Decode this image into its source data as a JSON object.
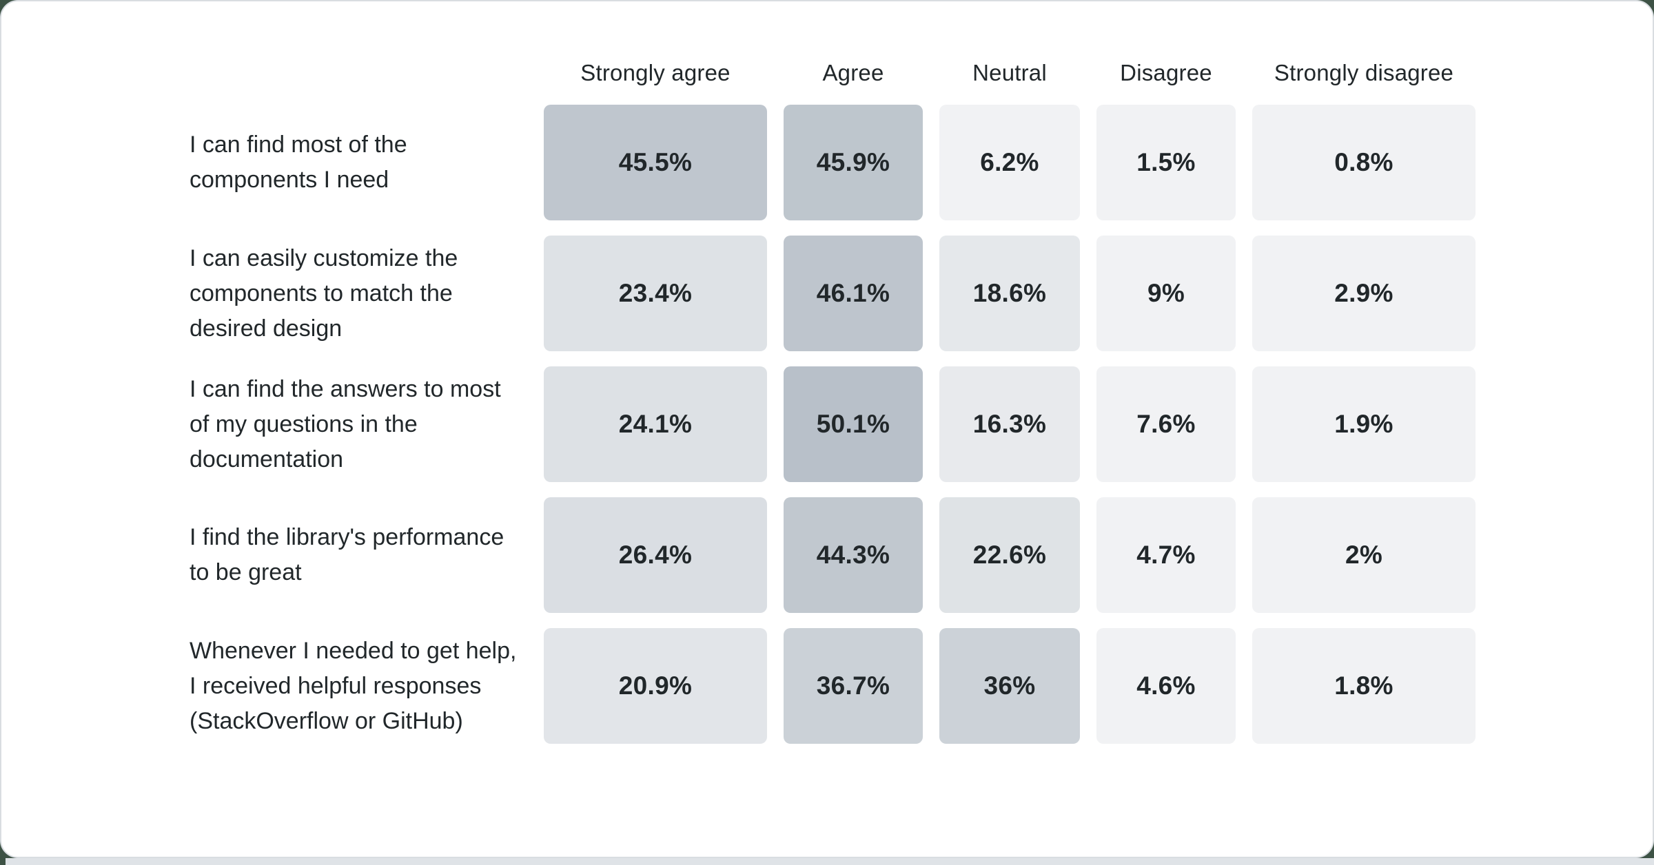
{
  "page": {
    "background_color": "#3d5245",
    "card_background": "#ffffff",
    "card_border_color": "#d9dde1",
    "bottom_strip_color": "#dfe3e7"
  },
  "theme": {
    "text_color": "#21272a",
    "cell_base_rgb": [
      114,
      130,
      147
    ],
    "cell_min_alpha": 0.1
  },
  "survey": {
    "columns": [
      "Strongly agree",
      "Agree",
      "Neutral",
      "Disagree",
      "Strongly disagree"
    ],
    "rows": [
      {
        "label": "I can find most of the components I need",
        "values": [
          45.5,
          45.9,
          6.2,
          1.5,
          0.8
        ],
        "display": [
          "45.5%",
          "45.9%",
          "6.2%",
          "1.5%",
          "0.8%"
        ]
      },
      {
        "label": "I can easily customize the components to match the desired design",
        "values": [
          23.4,
          46.1,
          18.6,
          9,
          2.9
        ],
        "display": [
          "23.4%",
          "46.1%",
          "18.6%",
          "9%",
          "2.9%"
        ]
      },
      {
        "label": "I can find the answers to most of my questions in the documentation",
        "values": [
          24.1,
          50.1,
          16.3,
          7.6,
          1.9
        ],
        "display": [
          "24.1%",
          "50.1%",
          "16.3%",
          "7.6%",
          "1.9%"
        ]
      },
      {
        "label": "I find the library's performance to be great",
        "values": [
          26.4,
          44.3,
          22.6,
          4.7,
          2
        ],
        "display": [
          "26.4%",
          "44.3%",
          "22.6%",
          "4.7%",
          "2%"
        ]
      },
      {
        "label": "Whenever I needed to get help, I received helpful responses (StackOverflow or GitHub)",
        "values": [
          20.9,
          36.7,
          36,
          4.6,
          1.8
        ],
        "display": [
          "20.9%",
          "36.7%",
          "36%",
          "4.6%",
          "1.8%"
        ]
      }
    ]
  },
  "chart_data": {
    "type": "heatmap",
    "categories": [
      "Strongly agree",
      "Agree",
      "Neutral",
      "Disagree",
      "Strongly disagree"
    ],
    "rows": [
      "I can find most of the components I need",
      "I can easily customize the components to match the desired design",
      "I can find the answers to most of my questions in the documentation",
      "I find the library's performance to be great",
      "Whenever I needed to get help, I received helpful responses (StackOverflow or GitHub)"
    ],
    "series": [
      {
        "name": "I can find most of the components I need",
        "values": [
          45.5,
          45.9,
          6.2,
          1.5,
          0.8
        ]
      },
      {
        "name": "I can easily customize the components to match the desired design",
        "values": [
          23.4,
          46.1,
          18.6,
          9,
          2.9
        ]
      },
      {
        "name": "I can find the answers to most of my questions in the documentation",
        "values": [
          24.1,
          50.1,
          16.3,
          7.6,
          1.9
        ]
      },
      {
        "name": "I find the library's performance to be great",
        "values": [
          26.4,
          44.3,
          22.6,
          4.7,
          2
        ]
      },
      {
        "name": "Whenever I needed to get help, I received helpful responses (StackOverflow or GitHub)",
        "values": [
          20.9,
          36.7,
          36,
          4.6,
          1.8
        ]
      }
    ],
    "value_unit": "percent",
    "value_range": [
      0,
      50.1
    ],
    "legend_position": "none",
    "grid": false,
    "cell_color_low": "#f4f6f8",
    "cell_color_high": "#b9c1ca"
  }
}
